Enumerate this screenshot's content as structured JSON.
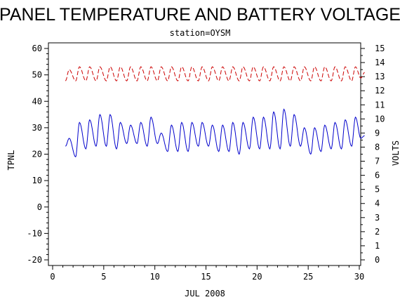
{
  "chart_data": {
    "type": "line",
    "title": "PANEL TEMPERATURE AND BATTERY VOLTAGE",
    "subtitle": "station=OYSM",
    "xlabel": "JUL 2008",
    "ylabel_left": "TPNL",
    "ylabel_right": "VOLTS",
    "xlim": [
      0,
      30
    ],
    "ylim_left": [
      -22,
      62
    ],
    "ylim_right": [
      -0.5,
      15.5
    ],
    "x_ticks": [
      "0",
      "5",
      "10",
      "15",
      "20",
      "25",
      "30"
    ],
    "y_left_ticks": [
      "-20",
      "-10",
      "0",
      "10",
      "20",
      "30",
      "40",
      "50",
      "60"
    ],
    "y_right_ticks": [
      "0",
      "1",
      "2",
      "3",
      "4",
      "5",
      "6",
      "7",
      "8",
      "9",
      "10",
      "11",
      "12",
      "13",
      "14",
      "15"
    ],
    "grid": false,
    "series": [
      {
        "axis": "left",
        "color": "#0000cc",
        "style": "solid",
        "daily": [
          {
            "day": 1.0,
            "min": 23,
            "max": 26
          },
          {
            "day": 2.0,
            "min": 19,
            "max": 32
          },
          {
            "day": 3.0,
            "min": 22,
            "max": 33
          },
          {
            "day": 4.0,
            "min": 23,
            "max": 35
          },
          {
            "day": 5.0,
            "min": 23,
            "max": 35
          },
          {
            "day": 6.0,
            "min": 22,
            "max": 32
          },
          {
            "day": 7.0,
            "min": 24,
            "max": 31
          },
          {
            "day": 8.0,
            "min": 24,
            "max": 32
          },
          {
            "day": 9.0,
            "min": 23,
            "max": 34
          },
          {
            "day": 10.0,
            "min": 24,
            "max": 28
          },
          {
            "day": 11.0,
            "min": 21,
            "max": 31
          },
          {
            "day": 12.0,
            "min": 21,
            "max": 32
          },
          {
            "day": 13.0,
            "min": 21,
            "max": 32
          },
          {
            "day": 14.0,
            "min": 23,
            "max": 32
          },
          {
            "day": 15.0,
            "min": 23,
            "max": 31
          },
          {
            "day": 16.0,
            "min": 21,
            "max": 31
          },
          {
            "day": 17.0,
            "min": 21,
            "max": 32
          },
          {
            "day": 18.0,
            "min": 20,
            "max": 32
          },
          {
            "day": 19.0,
            "min": 22,
            "max": 34
          },
          {
            "day": 20.0,
            "min": 22,
            "max": 34
          },
          {
            "day": 21.0,
            "min": 22,
            "max": 36
          },
          {
            "day": 22.0,
            "min": 22,
            "max": 37
          },
          {
            "day": 23.0,
            "min": 23,
            "max": 35
          },
          {
            "day": 24.0,
            "min": 23,
            "max": 30
          },
          {
            "day": 25.0,
            "min": 20,
            "max": 30
          },
          {
            "day": 26.0,
            "min": 21,
            "max": 31
          },
          {
            "day": 27.0,
            "min": 22,
            "max": 32
          },
          {
            "day": 28.0,
            "min": 22,
            "max": 33
          },
          {
            "day": 29.0,
            "min": 23,
            "max": 34
          },
          {
            "day": 29.9,
            "min": 26,
            "max": 27
          }
        ]
      },
      {
        "axis": "right",
        "color": "#cc0000",
        "style": "dashed",
        "daily": [
          {
            "day": 1.0,
            "min": 12.7,
            "max": 13.5
          },
          {
            "day": 2.0,
            "min": 12.7,
            "max": 13.7
          },
          {
            "day": 3.0,
            "min": 12.7,
            "max": 13.7
          },
          {
            "day": 4.0,
            "min": 12.7,
            "max": 13.7
          },
          {
            "day": 5.0,
            "min": 12.7,
            "max": 13.7
          },
          {
            "day": 6.0,
            "min": 12.7,
            "max": 13.7
          },
          {
            "day": 7.0,
            "min": 12.7,
            "max": 13.7
          },
          {
            "day": 8.0,
            "min": 12.7,
            "max": 13.7
          },
          {
            "day": 9.0,
            "min": 12.7,
            "max": 13.7
          },
          {
            "day": 10.0,
            "min": 12.7,
            "max": 13.7
          },
          {
            "day": 11.0,
            "min": 12.7,
            "max": 13.7
          },
          {
            "day": 12.0,
            "min": 12.7,
            "max": 13.7
          },
          {
            "day": 13.0,
            "min": 12.7,
            "max": 13.7
          },
          {
            "day": 14.0,
            "min": 12.7,
            "max": 13.7
          },
          {
            "day": 15.0,
            "min": 12.7,
            "max": 13.7
          },
          {
            "day": 16.0,
            "min": 12.7,
            "max": 13.7
          },
          {
            "day": 17.0,
            "min": 12.7,
            "max": 13.7
          },
          {
            "day": 18.0,
            "min": 12.7,
            "max": 13.7
          },
          {
            "day": 19.0,
            "min": 12.7,
            "max": 13.7
          },
          {
            "day": 20.0,
            "min": 12.7,
            "max": 13.7
          },
          {
            "day": 21.0,
            "min": 12.7,
            "max": 13.7
          },
          {
            "day": 22.0,
            "min": 12.7,
            "max": 13.7
          },
          {
            "day": 23.0,
            "min": 12.7,
            "max": 13.7
          },
          {
            "day": 24.0,
            "min": 12.7,
            "max": 13.7
          },
          {
            "day": 25.0,
            "min": 12.7,
            "max": 13.7
          },
          {
            "day": 26.0,
            "min": 12.7,
            "max": 13.7
          },
          {
            "day": 27.0,
            "min": 12.7,
            "max": 13.7
          },
          {
            "day": 28.0,
            "min": 12.7,
            "max": 13.7
          },
          {
            "day": 29.0,
            "min": 12.7,
            "max": 13.7
          },
          {
            "day": 29.9,
            "min": 12.9,
            "max": 13.3
          }
        ]
      }
    ]
  }
}
